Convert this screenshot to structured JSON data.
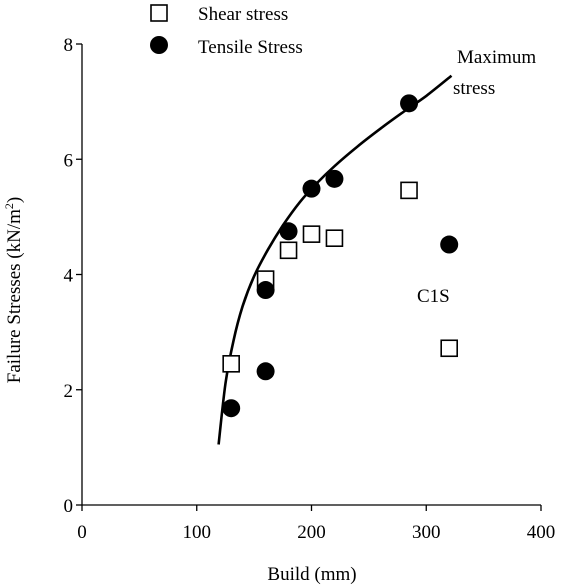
{
  "chart_data": {
    "type": "scatter",
    "xlabel": "Build (mm)",
    "ylabel_main": "Failure Stresses (kN/m",
    "ylabel_sup": "2",
    "ylabel_end": ")",
    "xlim": [
      0,
      400
    ],
    "ylim": [
      0,
      8
    ],
    "xticks": [
      0,
      100,
      200,
      300,
      400
    ],
    "yticks": [
      0,
      2,
      4,
      6,
      8
    ],
    "grid": false,
    "legend_position": "top-left",
    "series": [
      {
        "name": "Shear stress",
        "marker": "open-square",
        "x": [
          130,
          160,
          180,
          200,
          220,
          285,
          320
        ],
        "y": [
          2.45,
          3.92,
          4.42,
          4.7,
          4.63,
          5.46,
          2.72
        ]
      },
      {
        "name": "Tensile Stress",
        "marker": "filled-circle",
        "x": [
          130,
          160,
          160,
          180,
          200,
          220,
          285,
          320
        ],
        "y": [
          1.68,
          2.32,
          3.73,
          4.75,
          5.49,
          5.66,
          6.97,
          4.52
        ]
      }
    ],
    "curve": {
      "label_line1": "Maximum",
      "label_line2": "stress",
      "x_start": 119,
      "x_end": 322,
      "points": [
        [
          119,
          1.05
        ],
        [
          125,
          2.1
        ],
        [
          132,
          2.85
        ],
        [
          140,
          3.45
        ],
        [
          150,
          3.97
        ],
        [
          162,
          4.43
        ],
        [
          175,
          4.85
        ],
        [
          190,
          5.26
        ],
        [
          205,
          5.59
        ],
        [
          220,
          5.88
        ],
        [
          240,
          6.22
        ],
        [
          260,
          6.53
        ],
        [
          280,
          6.82
        ],
        [
          300,
          7.1
        ],
        [
          322,
          7.45
        ]
      ]
    },
    "annotation": "C1S",
    "colors": {
      "ink": "#000000",
      "background": "#ffffff"
    }
  }
}
